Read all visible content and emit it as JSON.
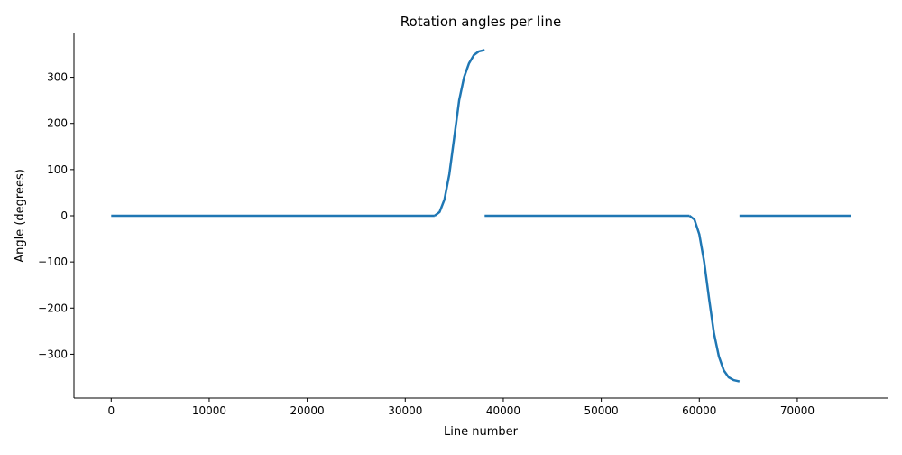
{
  "chart_data": {
    "type": "line",
    "title": "Rotation angles per line",
    "xlabel": "Line number",
    "ylabel": "Angle (degrees)",
    "xlim": [
      -3800,
      79300
    ],
    "ylim": [
      -395,
      395
    ],
    "xticks": [
      0,
      10000,
      20000,
      30000,
      40000,
      50000,
      60000,
      70000
    ],
    "xtick_labels": [
      "0",
      "10000",
      "20000",
      "30000",
      "40000",
      "50000",
      "60000",
      "70000"
    ],
    "yticks": [
      -300,
      -200,
      -100,
      0,
      100,
      200,
      300
    ],
    "ytick_labels": [
      "−300",
      "−200",
      "−100",
      "0",
      "100",
      "200",
      "300"
    ],
    "grid": false,
    "legend": false,
    "line_color": "#1f77b4",
    "series": [
      {
        "segments": [
          {
            "x": [
              0,
              33000
            ],
            "y": [
              0,
              0
            ]
          },
          {
            "x": [
              33000,
              33500,
              34000,
              34500,
              35000,
              35500,
              36000,
              36500,
              37000,
              37500,
              38100
            ],
            "y": [
              0,
              8,
              35,
              90,
              170,
              250,
              300,
              330,
              348,
              356,
              359
            ]
          },
          {
            "x": [
              38100,
              59000
            ],
            "y": [
              0,
              0
            ]
          },
          {
            "x": [
              59000,
              59500,
              60000,
              60500,
              61000,
              61500,
              62000,
              62500,
              63000,
              63500,
              64100
            ],
            "y": [
              0,
              -8,
              -40,
              -100,
              -180,
              -255,
              -305,
              -335,
              -350,
              -356,
              -359
            ]
          },
          {
            "x": [
              64100,
              75500
            ],
            "y": [
              0,
              0
            ]
          }
        ]
      }
    ]
  }
}
